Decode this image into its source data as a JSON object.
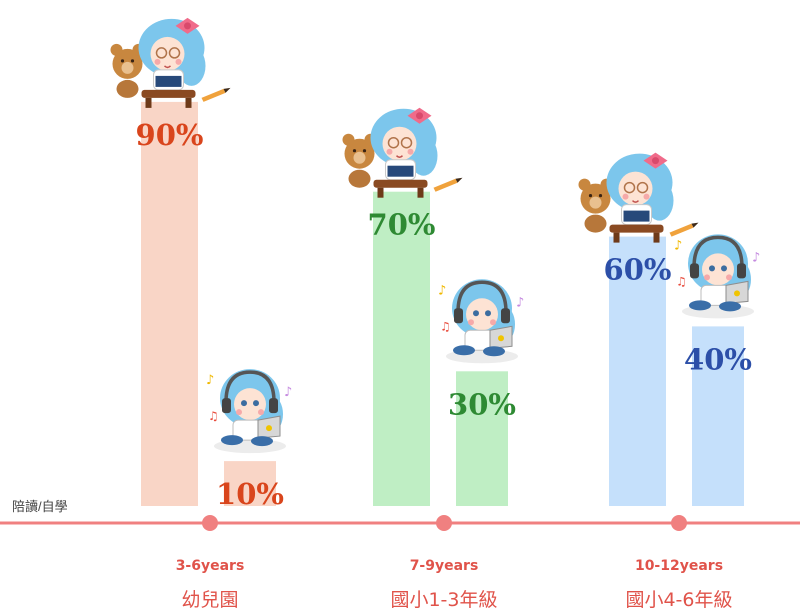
{
  "legend_label": "陪讀/自學",
  "colors": {
    "axis": "#f08080",
    "text_accent": "#e0534a"
  },
  "groups": [
    {
      "age_label": "3-6years",
      "stage_label": "幼兒園",
      "bar_color": "#f9d5c6",
      "label_color": "#d9451c",
      "values": [
        {
          "pct": 90,
          "label": "90%",
          "figure": "girl-reading-with-teddy-bear-icon"
        },
        {
          "pct": 10,
          "label": "10%",
          "figure": "girl-with-headphones-and-laptop-icon"
        }
      ]
    },
    {
      "age_label": "7-9years",
      "stage_label": "國小1-3年級",
      "bar_color": "#bfeec4",
      "label_color": "#2e8a33",
      "values": [
        {
          "pct": 70,
          "label": "70%",
          "figure": "girl-reading-with-teddy-bear-icon"
        },
        {
          "pct": 30,
          "label": "30%",
          "figure": "girl-with-headphones-and-laptop-icon"
        }
      ]
    },
    {
      "age_label": "10-12years",
      "stage_label": "國小4-6年級",
      "bar_color": "#c5e0fb",
      "label_color": "#2c4fa8",
      "values": [
        {
          "pct": 60,
          "label": "60%",
          "figure": "girl-reading-with-teddy-bear-icon"
        },
        {
          "pct": 40,
          "label": "40%",
          "figure": "girl-with-headphones-and-laptop-icon"
        }
      ]
    }
  ],
  "chart_data": {
    "type": "bar",
    "title": "",
    "xlabel": "",
    "ylabel": "",
    "categories": [
      "3-6years 幼兒園",
      "7-9years 國小1-3年級",
      "10-12years 國小4-6年級"
    ],
    "series": [
      {
        "values": [
          90,
          70,
          60
        ]
      },
      {
        "values": [
          10,
          30,
          40
        ]
      }
    ],
    "ylim": [
      0,
      100
    ],
    "grid": false,
    "legend": "bottom-left"
  }
}
